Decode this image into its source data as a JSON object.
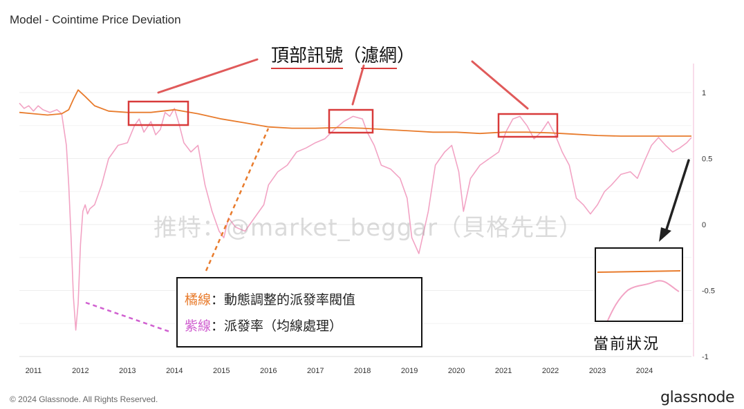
{
  "header": {
    "title": "Model - Cointime Price Deviation"
  },
  "footer": {
    "copyright": "© 2024 Glassnode. All Rights Reserved.",
    "brand": "glassnode"
  },
  "watermark": "推特：@market_beggar（貝格先生）",
  "annotations": {
    "top_signal": "頂部訊號（濾網）",
    "top_signal_main": "頂部訊號",
    "top_signal_paren_open": "（",
    "top_signal_paren_inner": "濾網",
    "top_signal_paren_close": "）",
    "legend": {
      "orange_key": "橘線",
      "orange_desc": "：動態調整的派發率閥值",
      "purple_key": "紫線",
      "purple_desc": "：派發率（均線處理）"
    },
    "current_status": "當前狀況"
  },
  "colors": {
    "threshold_line": "#e87b2c",
    "rate_line": "#f2a3c4",
    "signal_box": "#d83a3a",
    "grid": "#eeeeee"
  },
  "chart_data": {
    "type": "line",
    "title": "Model - Cointime Price Deviation",
    "xlabel": "",
    "ylabel": "",
    "x_ticks": [
      "2011",
      "2012",
      "2013",
      "2014",
      "2015",
      "2016",
      "2017",
      "2018",
      "2019",
      "2020",
      "2021",
      "2022",
      "2023",
      "2024"
    ],
    "y_ticks": [
      "1",
      "0.5",
      "0",
      "-0.5",
      "-1"
    ],
    "y_tick_values": [
      1,
      0.5,
      0,
      -0.5,
      -1
    ],
    "ylim": [
      -1,
      1.22
    ],
    "xlim": [
      2010.7,
      2025.0
    ],
    "grid": true,
    "series": [
      {
        "id": "threshold",
        "x": [
          2010.7,
          2011.0,
          2011.3,
          2011.6,
          2011.75,
          2011.85,
          2011.95,
          2012.1,
          2012.3,
          2012.6,
          2013.0,
          2013.5,
          2014.0,
          2014.5,
          2015.0,
          2015.5,
          2016.0,
          2016.5,
          2017.0,
          2017.5,
          2018.0,
          2018.5,
          2019.0,
          2019.5,
          2020.0,
          2020.5,
          2021.0,
          2021.5,
          2022.0,
          2022.5,
          2023.0,
          2023.5,
          2024.0,
          2024.5,
          2025.0
        ],
        "y": [
          0.85,
          0.84,
          0.83,
          0.84,
          0.87,
          0.95,
          1.02,
          0.97,
          0.9,
          0.86,
          0.85,
          0.85,
          0.87,
          0.84,
          0.8,
          0.77,
          0.74,
          0.73,
          0.73,
          0.735,
          0.73,
          0.72,
          0.71,
          0.7,
          0.7,
          0.69,
          0.7,
          0.7,
          0.695,
          0.685,
          0.675,
          0.67,
          0.67,
          0.67,
          0.67
        ]
      },
      {
        "id": "distribution_rate",
        "x": [
          2010.7,
          2010.8,
          2010.9,
          2011.0,
          2011.1,
          2011.2,
          2011.35,
          2011.5,
          2011.6,
          2011.7,
          2011.75,
          2011.8,
          2011.85,
          2011.9,
          2011.95,
          2012.0,
          2012.05,
          2012.1,
          2012.15,
          2012.2,
          2012.3,
          2012.45,
          2012.6,
          2012.8,
          2013.0,
          2013.15,
          2013.25,
          2013.35,
          2013.5,
          2013.6,
          2013.7,
          2013.8,
          2013.9,
          2014.0,
          2014.1,
          2014.2,
          2014.35,
          2014.5,
          2014.65,
          2014.8,
          2014.95,
          2015.05,
          2015.15,
          2015.3,
          2015.5,
          2015.7,
          2015.9,
          2016.0,
          2016.2,
          2016.4,
          2016.6,
          2016.8,
          2017.0,
          2017.2,
          2017.4,
          2017.6,
          2017.8,
          2018.0,
          2018.1,
          2018.25,
          2018.4,
          2018.6,
          2018.8,
          2018.95,
          2019.05,
          2019.2,
          2019.4,
          2019.55,
          2019.65,
          2019.75,
          2019.9,
          2020.05,
          2020.15,
          2020.3,
          2020.5,
          2020.7,
          2020.9,
          2021.05,
          2021.2,
          2021.35,
          2021.5,
          2021.65,
          2021.8,
          2021.95,
          2022.1,
          2022.25,
          2022.4,
          2022.55,
          2022.7,
          2022.85,
          2023.0,
          2023.15,
          2023.3,
          2023.5,
          2023.7,
          2023.85,
          2024.0,
          2024.15,
          2024.3,
          2024.45,
          2024.6,
          2024.75,
          2024.9,
          2025.0
        ],
        "y": [
          0.92,
          0.88,
          0.9,
          0.86,
          0.9,
          0.87,
          0.85,
          0.87,
          0.84,
          0.6,
          0.3,
          -0.1,
          -0.55,
          -0.8,
          -0.6,
          -0.15,
          0.1,
          0.15,
          0.08,
          0.12,
          0.15,
          0.3,
          0.5,
          0.6,
          0.62,
          0.75,
          0.8,
          0.7,
          0.78,
          0.68,
          0.72,
          0.85,
          0.82,
          0.88,
          0.76,
          0.62,
          0.55,
          0.6,
          0.3,
          0.1,
          -0.05,
          -0.1,
          0.05,
          -0.02,
          -0.05,
          0.05,
          0.15,
          0.3,
          0.4,
          0.45,
          0.55,
          0.58,
          0.62,
          0.65,
          0.72,
          0.78,
          0.82,
          0.8,
          0.7,
          0.6,
          0.45,
          0.42,
          0.35,
          0.2,
          -0.1,
          -0.22,
          0.1,
          0.45,
          0.5,
          0.55,
          0.6,
          0.4,
          0.1,
          0.35,
          0.45,
          0.5,
          0.55,
          0.7,
          0.8,
          0.82,
          0.75,
          0.65,
          0.7,
          0.78,
          0.68,
          0.55,
          0.45,
          0.2,
          0.15,
          0.08,
          0.15,
          0.25,
          0.3,
          0.38,
          0.4,
          0.35,
          0.48,
          0.6,
          0.66,
          0.6,
          0.55,
          0.58,
          0.62,
          0.66
        ]
      }
    ]
  }
}
